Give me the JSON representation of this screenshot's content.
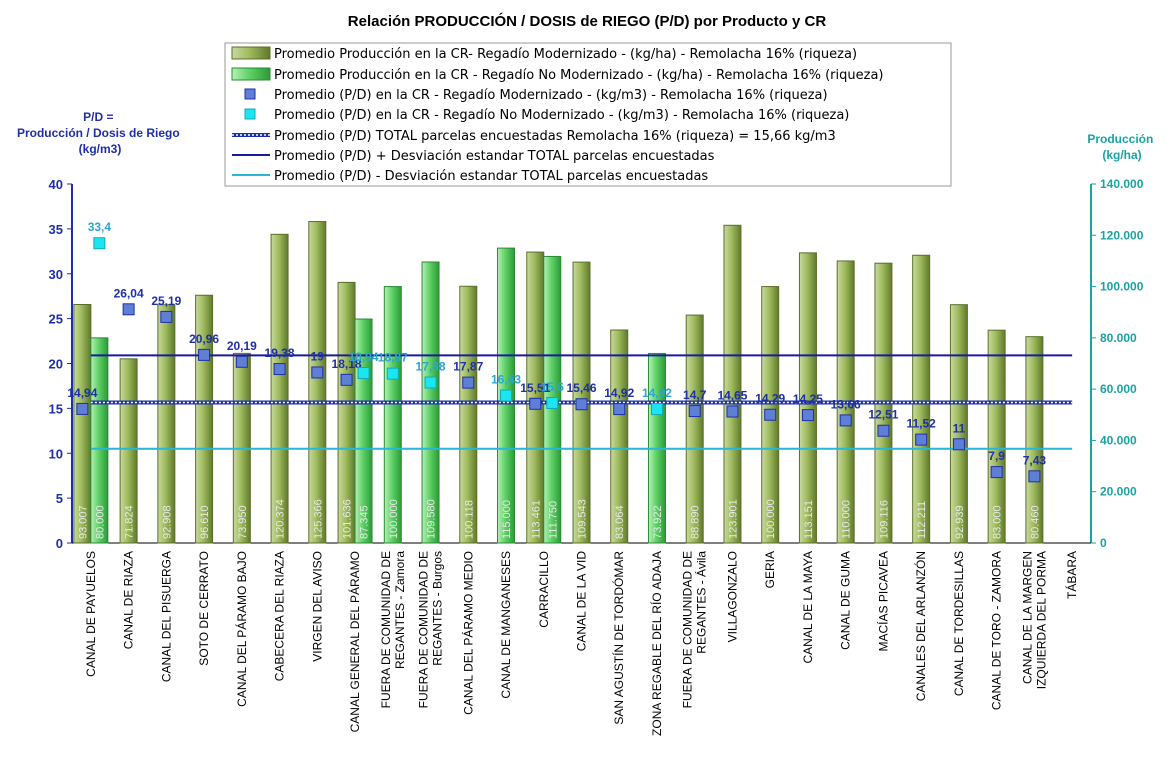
{
  "chart_data": {
    "type": "bar",
    "title": "Relación PRODUCCIÓN / DOSIS de RIEGO (P/D) por Producto y CR",
    "ylabel_left": [
      "P/D =",
      "Producción / Dosis  de Riego",
      "(kg/m3)"
    ],
    "ylabel_right": [
      "Producción",
      "(kg/ha)"
    ],
    "ylim_left": [
      0,
      40
    ],
    "ylim_right": [
      0,
      140000
    ],
    "left_ticks": [
      "0",
      "5",
      "10",
      "15",
      "20",
      "25",
      "30",
      "35",
      "40"
    ],
    "right_ticks": [
      "0",
      "20.000",
      "40.000",
      "60.000",
      "80.000",
      "100.000",
      "120.000",
      "140.000"
    ],
    "categories": [
      [
        "CANAL DE PAYUELOS"
      ],
      [
        "CANAL DE RIAZA"
      ],
      [
        "CANAL DEL PISUERGA"
      ],
      [
        "SOTO DE CERRATO"
      ],
      [
        "CANAL DEL PÁRAMO BAJO"
      ],
      [
        "CABECERA DEL RIAZA"
      ],
      [
        "VIRGEN DEL AVISO"
      ],
      [
        "CANAL GENERAL DEL PÁRAMO"
      ],
      [
        "FUERA DE COMUNIDAD DE",
        "REGANTES - Zamora"
      ],
      [
        "FUERA DE COMUNIDAD DE",
        "REGANTES - Burgos"
      ],
      [
        "CANAL DEL PÁRAMO MEDIO"
      ],
      [
        "CANAL DE MANGANESES"
      ],
      [
        "CARRACILLO"
      ],
      [
        "CANAL DE LA VID"
      ],
      [
        "SAN AGUSTÍN DE TORDÓMAR"
      ],
      [
        "ZONA REGABLE DEL RÍO ADAJA"
      ],
      [
        "FUERA DE COMUNIDAD DE",
        "REGANTES - Ávila"
      ],
      [
        "VILLAGONZALO"
      ],
      [
        "GERIA"
      ],
      [
        "CANAL DE LA MAYA"
      ],
      [
        "CANAL DE GUMA"
      ],
      [
        "MACÍAS PICAVEA"
      ],
      [
        "CANALES DEL ARLANZÓN"
      ],
      [
        "CANAL DE TORDESILLAS"
      ],
      [
        "CANAL DE TORO - ZAMORA"
      ],
      [
        "CANAL DE LA MARGEN",
        "IZQUIERDA DEL PORMA"
      ],
      [
        "TÁBARA"
      ]
    ],
    "series": [
      {
        "name": "Promedio Producción en la CR- Regadío Modernizado -  (kg/ha) - Remolacha 16% (riqueza)",
        "axis": "right",
        "kind": "bar",
        "color": "#7f9b3a",
        "values": [
          93007,
          71824,
          92908,
          96610,
          73950,
          120374,
          125366,
          101636,
          null,
          null,
          100118,
          null,
          113461,
          109543,
          83064,
          null,
          88890,
          123901,
          100000,
          113151,
          110000,
          109116,
          112211,
          92939,
          83000,
          80460,
          null
        ],
        "labels": [
          "93.007",
          "71.824",
          "92.908",
          "96.610",
          "73.950",
          "120.374",
          "125.366",
          "101.636",
          "",
          "",
          "100.118",
          "",
          "113.461",
          "109.543",
          "83.064",
          "",
          "88.890",
          "123.901",
          "100.000",
          "113.151",
          "110.000",
          "109.116",
          "112.211",
          "92.939",
          "83.000",
          "80.460",
          ""
        ]
      },
      {
        "name": "Promedio Producción en la CR - Regadío No Modernizado -  (kg/ha) - Remolacha 16% (riqueza)",
        "axis": "right",
        "kind": "bar",
        "color": "#3fbf4f",
        "values": [
          80000,
          null,
          null,
          null,
          null,
          null,
          null,
          87345,
          100000,
          109580,
          null,
          115000,
          111750,
          null,
          null,
          73922,
          null,
          null,
          null,
          null,
          null,
          null,
          null,
          null,
          null,
          null,
          null
        ],
        "labels": [
          "80.000",
          "",
          "",
          "",
          "",
          "",
          "",
          "87.345",
          "100.000",
          "109.580",
          "",
          "115.000",
          "111.750",
          "",
          "",
          "73.922",
          "",
          "",
          "",
          "",
          "",
          "",
          "",
          "",
          "",
          "",
          ""
        ]
      },
      {
        "name": "Promedio (P/D) en la CR - Regadío Modernizado - (kg/m3) - Remolacha 16% (riqueza)",
        "axis": "left",
        "kind": "marker",
        "color": "#5f7fd6",
        "values": [
          14.94,
          26.04,
          25.19,
          20.96,
          20.19,
          19.38,
          19,
          18.18,
          null,
          null,
          17.87,
          null,
          15.51,
          15.46,
          14.92,
          null,
          14.7,
          14.65,
          14.29,
          14.25,
          13.66,
          12.51,
          11.52,
          11,
          7.9,
          7.43,
          null
        ],
        "labels": [
          "14,94",
          "26,04",
          "25,19",
          "20,96",
          "20,19",
          "19,38",
          "19",
          "18,18",
          "",
          "",
          "17,87",
          "",
          "15,51",
          "15,46",
          "14,92",
          "",
          "14,7",
          "14,65",
          "14,29",
          "14,25",
          "13,66",
          "12,51",
          "11,52",
          "11",
          "7,9",
          "7,43",
          ""
        ]
      },
      {
        "name": "Promedio (P/D) en la CR - Regadío No Modernizado - (kg/m3) - Remolacha 16% (riqueza)",
        "axis": "left",
        "kind": "marker",
        "color": "#19e6f0",
        "values": [
          33.4,
          null,
          null,
          null,
          null,
          null,
          null,
          18.94,
          18.87,
          17.88,
          null,
          16.43,
          15.6,
          null,
          null,
          14.92,
          null,
          null,
          null,
          null,
          null,
          null,
          null,
          null,
          null,
          null,
          null
        ],
        "labels": [
          "33,4",
          "",
          "",
          "",
          "",
          "",
          "",
          "18,94",
          "18,87",
          "17,88",
          "",
          "16,43",
          "15,6",
          "",
          "",
          "14,92",
          "",
          "",
          "",
          "",
          "",
          "",
          "",
          "",
          "",
          "",
          ""
        ]
      }
    ],
    "reference_lines": [
      {
        "name": "Promedio (P/D) TOTAL parcelas encuestadas Remolacha 16% (riqueza) = 15,66 kg/m3",
        "value": 15.66,
        "color": "#1f2fa8",
        "style": "dotted-double"
      },
      {
        "name": "Promedio (P/D) + Desviación estandar TOTAL parcelas encuestadas",
        "value": 20.9,
        "color": "#1a1aa0",
        "style": "solid"
      },
      {
        "name": "Promedio (P/D) - Desviación estandar TOTAL parcelas encuestadas",
        "value": 10.5,
        "color": "#29b6d8",
        "style": "solid"
      }
    ],
    "legend_position": "top-center"
  }
}
